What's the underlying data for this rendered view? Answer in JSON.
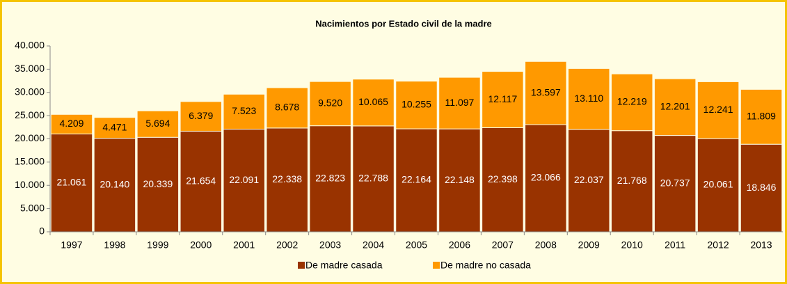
{
  "chart_data": {
    "type": "stacked_bar",
    "title": "Nacimientos por Estado civil de la madre",
    "categories": [
      "1997",
      "1998",
      "1999",
      "2000",
      "2001",
      "2002",
      "2003",
      "2004",
      "2005",
      "2006",
      "2007",
      "2008",
      "2009",
      "2010",
      "2011",
      "2012",
      "2013"
    ],
    "series": [
      {
        "name": "De madre casada",
        "color": "#993300",
        "values": [
          21061,
          20140,
          20339,
          21654,
          22091,
          22338,
          22823,
          22788,
          22164,
          22148,
          22398,
          23066,
          22037,
          21768,
          20737,
          20061,
          18846
        ],
        "value_labels": [
          "21.061",
          "20.140",
          "20.339",
          "21.654",
          "22.091",
          "22.338",
          "22.823",
          "22.788",
          "22.164",
          "22.148",
          "22.398",
          "23.066",
          "22.037",
          "21.768",
          "20.737",
          "20.061",
          "18.846"
        ]
      },
      {
        "name": "De madre no casada",
        "color": "#ff9900",
        "values": [
          4209,
          4471,
          5694,
          6379,
          7523,
          8678,
          9520,
          10065,
          10255,
          11097,
          12117,
          13597,
          13110,
          12219,
          12201,
          12241,
          11809
        ],
        "value_labels": [
          "4.209",
          "4.471",
          "5.694",
          "6.379",
          "7.523",
          "8.678",
          "9.520",
          "10.065",
          "10.255",
          "11.097",
          "12.117",
          "13.597",
          "13.110",
          "12.219",
          "12.201",
          "12.241",
          "11.809"
        ]
      }
    ],
    "ylim": [
      0,
      40000
    ],
    "yticks": [
      0,
      {
        "value": 5000,
        "label": "5.000"
      },
      {
        "value": 10000,
        "label": "10.000"
      },
      {
        "value": 15000,
        "label": "15.000"
      },
      {
        "value": 20000,
        "label": "20.000"
      },
      {
        "value": 25000,
        "label": "25.000"
      },
      {
        "value": 30000,
        "label": "30.000"
      },
      {
        "value": 35000,
        "label": "35.000"
      },
      {
        "value": 40000,
        "label": "40.000"
      }
    ],
    "grid": false,
    "legend": "bottom"
  }
}
